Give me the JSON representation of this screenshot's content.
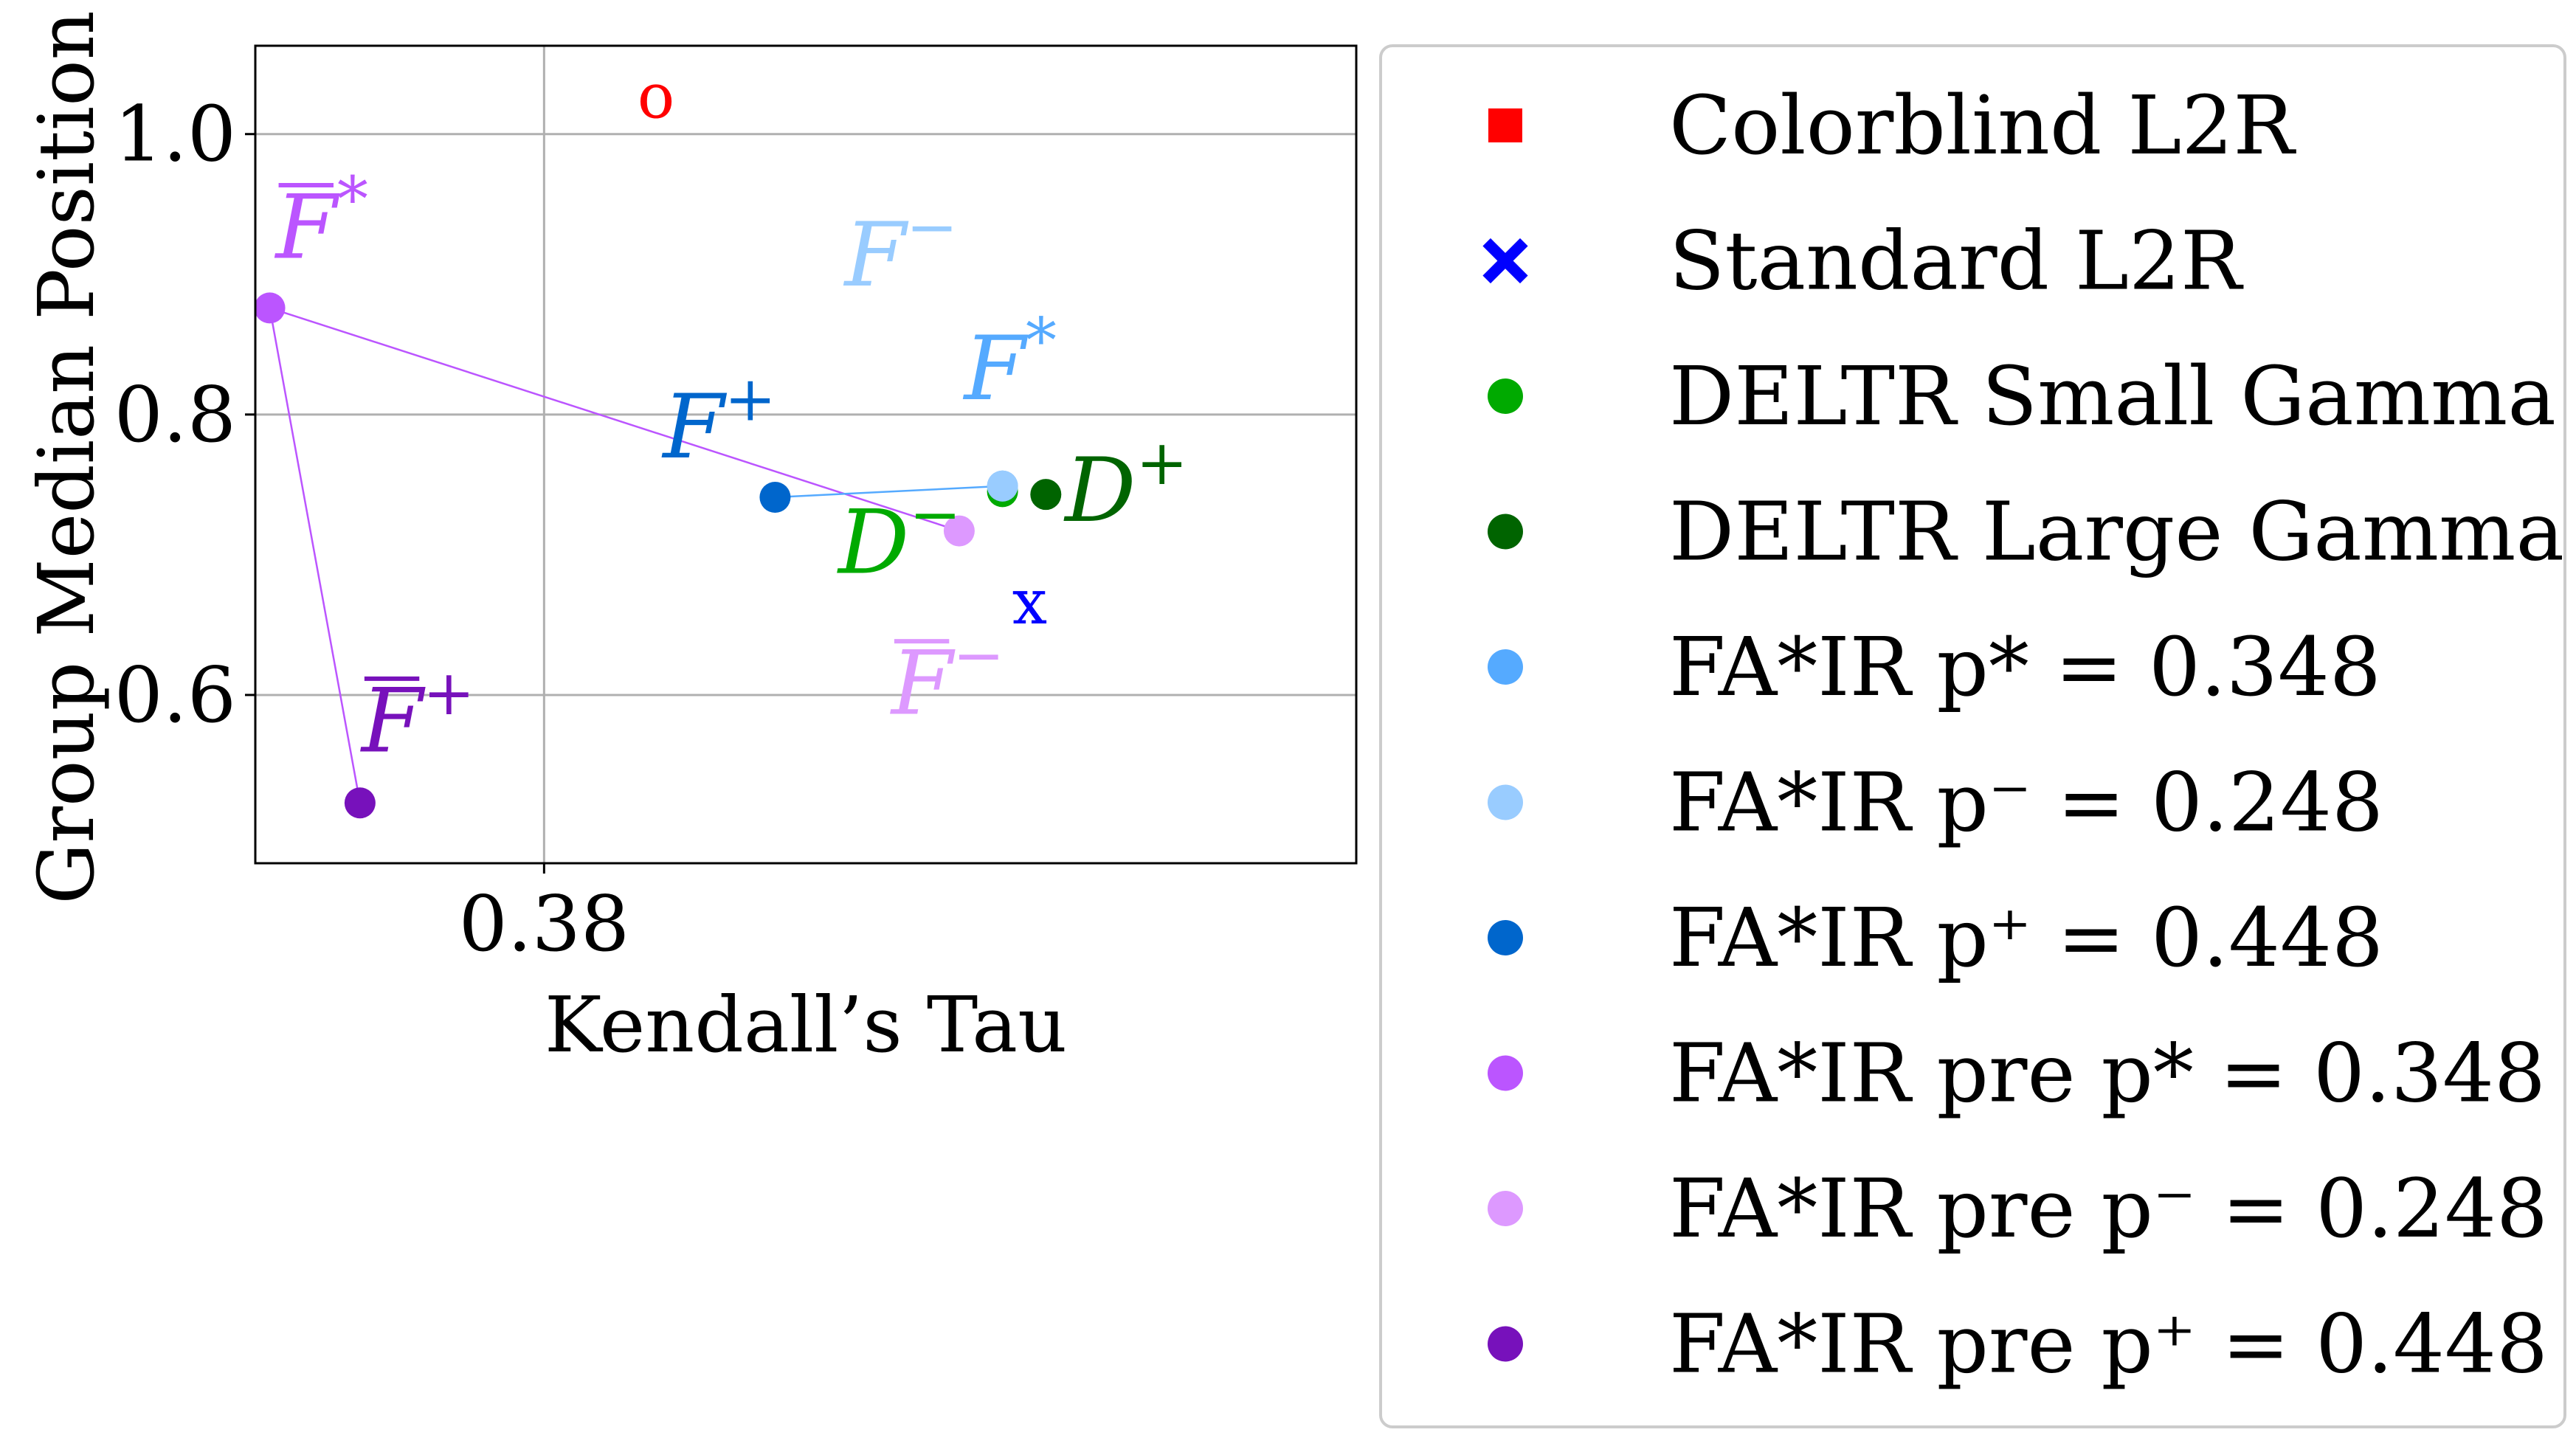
{
  "chart_data": {
    "type": "scatter",
    "title": "",
    "xlabel": "Kendall’s Tau",
    "ylabel": "Group Median Position",
    "xlim": [
      0.3,
      0.605
    ],
    "ylim": [
      0.48,
      1.063
    ],
    "x_ticks": [
      {
        "value": 0.38,
        "label": "0.38"
      }
    ],
    "y_ticks": [
      {
        "value": 0.6,
        "label": "0.6"
      },
      {
        "value": 0.8,
        "label": "0.8"
      },
      {
        "value": 1.0,
        "label": "1.0"
      }
    ],
    "grid": true,
    "legend_position": "right",
    "series": [
      {
        "key": "colorblind",
        "name": "Colorblind L2R",
        "color": "#ff0000",
        "marker": "square",
        "label_base": "o",
        "label_sup": "",
        "label_bar": false,
        "points": [
          {
            "x": 0.411,
            "y": 1.018
          }
        ]
      },
      {
        "key": "standard",
        "name": "Standard L2R",
        "color": "#0000ff",
        "marker": "x",
        "label_base": "x",
        "label_sup": "",
        "label_bar": false,
        "points": [
          {
            "x": 0.508,
            "y": 0.71
          }
        ]
      },
      {
        "key": "deltr_small",
        "name": "DELTR Small Gamma",
        "color": "#00aa00",
        "marker": "circle",
        "label_base": "D",
        "label_sup": "−",
        "label_bar": false,
        "points": [
          {
            "x": 0.507,
            "y": 0.745
          }
        ]
      },
      {
        "key": "deltr_large",
        "name": "DELTR Large Gamma",
        "color": "#006400",
        "marker": "circle",
        "label_base": "D",
        "label_sup": "+",
        "label_bar": false,
        "points": [
          {
            "x": 0.519,
            "y": 0.743
          }
        ]
      },
      {
        "key": "fair_star",
        "name": "FA*IR p* = 0.348",
        "color": "#55aaff",
        "marker": "circle",
        "label_base": "F",
        "label_sup": "*",
        "label_bar": false,
        "points": [
          {
            "x": 0.507,
            "y": 0.749
          }
        ]
      },
      {
        "key": "fair_minus",
        "name": "FA*IR p⁻ = 0.248",
        "color": "#99ccff",
        "marker": "circle",
        "label_base": "F",
        "label_sup": "−",
        "label_bar": false,
        "points": [
          {
            "x": 0.507,
            "y": 0.749
          }
        ]
      },
      {
        "key": "fair_plus",
        "name": "FA*IR p⁺ = 0.448",
        "color": "#0066cc",
        "marker": "circle",
        "label_base": "F",
        "label_sup": "+",
        "label_bar": false,
        "points": [
          {
            "x": 0.444,
            "y": 0.741
          }
        ]
      },
      {
        "key": "pre_star",
        "name": "FA*IR pre p* = 0.348",
        "color": "#bb55ff",
        "marker": "circle",
        "label_base": "F",
        "label_sup": "*",
        "label_bar": true,
        "points": [
          {
            "x": 0.304,
            "y": 0.876
          }
        ]
      },
      {
        "key": "pre_minus",
        "name": "FA*IR pre p⁻ = 0.248",
        "color": "#dd99ff",
        "marker": "circle",
        "label_base": "F",
        "label_sup": "−",
        "label_bar": true,
        "points": [
          {
            "x": 0.495,
            "y": 0.717
          }
        ]
      },
      {
        "key": "pre_plus",
        "name": "FA*IR pre p⁺ = 0.448",
        "color": "#7711bb",
        "marker": "circle",
        "label_base": "F",
        "label_sup": "+",
        "label_bar": true,
        "points": [
          {
            "x": 0.329,
            "y": 0.523
          }
        ]
      }
    ],
    "connections": [
      {
        "from": "pre_star",
        "to": "pre_minus",
        "color": "#bb55ff"
      },
      {
        "from": "pre_star",
        "to": "pre_plus",
        "color": "#bb55ff"
      },
      {
        "from": "fair_plus",
        "to": "fair_star",
        "color": "#55aaff"
      }
    ]
  }
}
